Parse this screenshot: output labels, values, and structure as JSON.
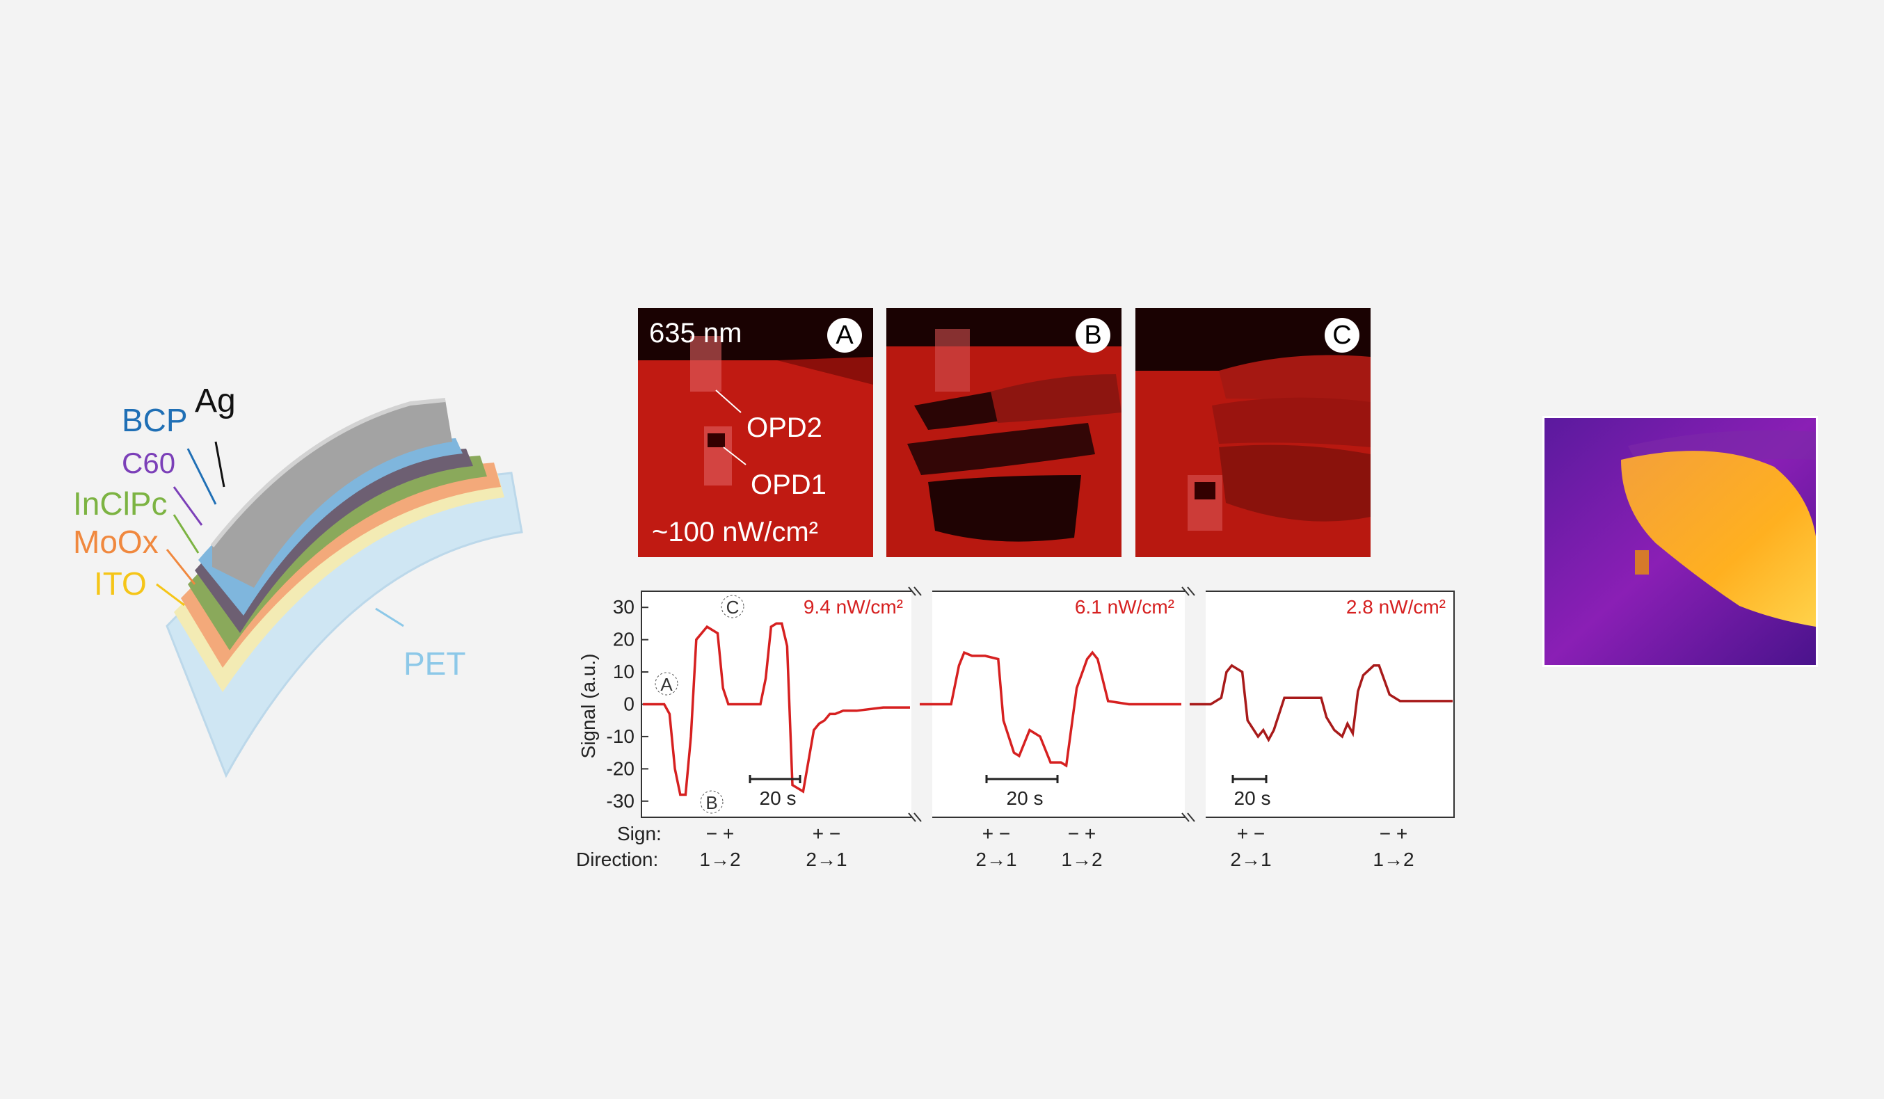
{
  "layer_stack": {
    "labels": [
      "Ag",
      "BCP",
      "C60",
      "InClPc",
      "MoOx",
      "ITO",
      "PET"
    ],
    "colors": {
      "Ag": "#111111",
      "BCP": "#1f6fb5",
      "C60": "#7b3fb8",
      "InClPc": "#7cb342",
      "MoOx": "#f0883e",
      "ITO": "#f5c518",
      "PET": "#8cc8e8"
    }
  },
  "photos": [
    {
      "badge": "A",
      "wavelength": "635 nm",
      "intensity": "~100 nW/cm²",
      "opd2": "OPD2",
      "opd1": "OPD1"
    },
    {
      "badge": "B"
    },
    {
      "badge": "C"
    }
  ],
  "chart_data": {
    "type": "line",
    "ylabel": "Signal (a.u.)",
    "ylim": [
      -35,
      35
    ],
    "yticks": [
      "30",
      "20",
      "10",
      "0",
      "-10",
      "-20",
      "-30"
    ],
    "segments": [
      {
        "intensity": "9.4 nW/cm²",
        "color": "#d62020",
        "scale_bar": "20 s",
        "x": [
          0,
          0.08,
          0.1,
          0.12,
          0.14,
          0.16,
          0.18,
          0.2,
          0.24,
          0.28,
          0.3,
          0.32,
          0.34,
          0.4,
          0.44,
          0.46,
          0.48,
          0.5,
          0.52,
          0.54,
          0.56,
          0.6,
          0.64,
          0.66,
          0.68,
          0.7,
          0.72,
          0.75,
          0.8,
          0.9,
          1.0
        ],
        "y": [
          0,
          0,
          -3,
          -20,
          -28,
          -28,
          -10,
          20,
          24,
          22,
          5,
          0,
          0,
          0,
          0,
          8,
          24,
          25,
          25,
          18,
          -25,
          -27,
          -8,
          -6,
          -5,
          -3,
          -3,
          -2,
          -2,
          -1,
          -1
        ]
      },
      {
        "intensity": "6.1 nW/cm²",
        "color": "#d62020",
        "scale_bar": "20 s",
        "x": [
          0,
          0.12,
          0.15,
          0.17,
          0.2,
          0.25,
          0.3,
          0.32,
          0.36,
          0.38,
          0.42,
          0.46,
          0.5,
          0.54,
          0.56,
          0.6,
          0.64,
          0.66,
          0.68,
          0.72,
          0.8,
          0.9,
          1.0
        ],
        "y": [
          0,
          0,
          12,
          16,
          15,
          15,
          14,
          -5,
          -15,
          -16,
          -8,
          -10,
          -18,
          -18,
          -19,
          5,
          14,
          16,
          14,
          1,
          0,
          0,
          0
        ]
      },
      {
        "intensity": "2.8 nW/cm²",
        "color": "#a81a1a",
        "scale_bar": "20 s",
        "x": [
          0,
          0.08,
          0.12,
          0.14,
          0.16,
          0.2,
          0.22,
          0.26,
          0.28,
          0.3,
          0.32,
          0.36,
          0.5,
          0.52,
          0.55,
          0.58,
          0.6,
          0.62,
          0.64,
          0.66,
          0.7,
          0.72,
          0.76,
          0.8,
          0.9,
          1.0
        ],
        "y": [
          0,
          0,
          2,
          10,
          12,
          10,
          -5,
          -10,
          -8,
          -11,
          -8,
          2,
          2,
          -4,
          -8,
          -10,
          -6,
          -9,
          4,
          9,
          12,
          12,
          3,
          1,
          1,
          1
        ]
      }
    ],
    "markers": [
      "A",
      "B",
      "C"
    ]
  },
  "annotations": {
    "sign_label": "Sign:",
    "direction_label": "Direction:",
    "entries": [
      {
        "sign": "− +",
        "direction": "1→2"
      },
      {
        "sign": "+ −",
        "direction": "2→1"
      },
      {
        "sign": "+ −",
        "direction": "2→1"
      },
      {
        "sign": "− +",
        "direction": "1→2"
      },
      {
        "sign": "+ −",
        "direction": "2→1"
      },
      {
        "sign": "− +",
        "direction": "1→2"
      }
    ]
  }
}
